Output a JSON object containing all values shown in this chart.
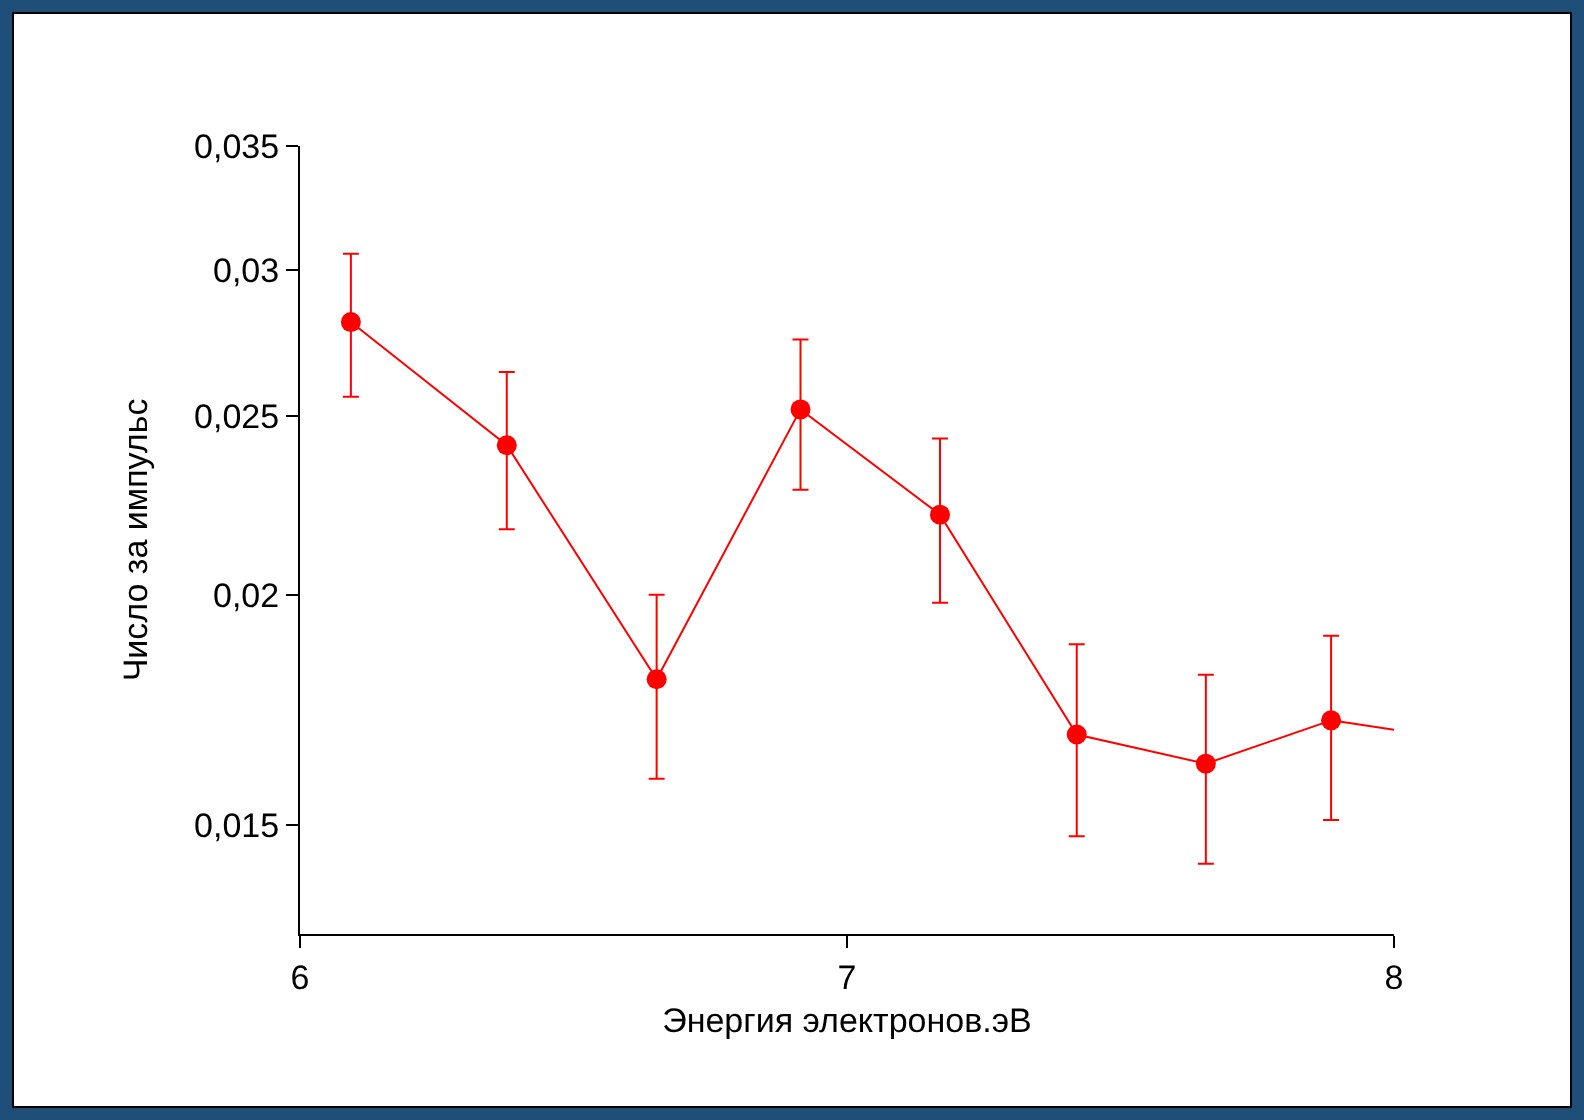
{
  "chart_data": {
    "type": "line",
    "xlabel": "Энергия электронов.эВ",
    "ylabel": "Число за импульс",
    "log": "y",
    "grid": false,
    "marker": "circle",
    "line_style": "solid",
    "xlim": [
      6,
      8
    ],
    "xticks": [
      6,
      7,
      8
    ],
    "ylim": [
      0.0131,
      0.035
    ],
    "yticks": [
      {
        "value": 0.015,
        "label": "0,015"
      },
      {
        "value": 0.02,
        "label": "0,02"
      },
      {
        "value": 0.025,
        "label": "0,025"
      },
      {
        "value": 0.03,
        "label": "0,03"
      },
      {
        "value": 0.035,
        "label": "0,035"
      }
    ],
    "series": [
      {
        "color": "#ff0000",
        "x": [
          6.093,
          6.378,
          6.652,
          6.915,
          7.17,
          7.42,
          7.656,
          7.885
        ],
        "values": [
          0.0281,
          0.0241,
          0.018,
          0.0252,
          0.0221,
          0.0168,
          0.0162,
          0.0171
        ],
        "errors": [
          [
            0.0256,
            0.0306
          ],
          [
            0.0217,
            0.0264
          ],
          [
            0.0159,
            0.02
          ],
          [
            0.0228,
            0.0275
          ],
          [
            0.0198,
            0.0243
          ],
          [
            0.0148,
            0.0188
          ],
          [
            0.0143,
            0.0181
          ],
          [
            0.0151,
            0.019
          ]
        ]
      },
      {
        "color": "#ff0000",
        "marker": "none",
        "x": [
          7.885,
          8
        ],
        "values": [
          0.0171,
          0.0169
        ]
      }
    ]
  }
}
